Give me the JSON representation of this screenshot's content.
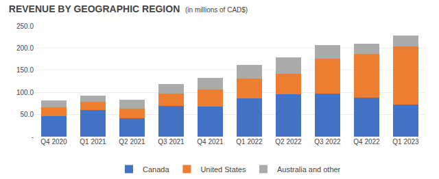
{
  "chart_data": {
    "type": "bar",
    "title": "REVENUE BY GEOGRAPHIC REGION",
    "subtitle": "(in millions of CAD$)",
    "categories": [
      "Q4 2020",
      "Q1 2021",
      "Q2 2021",
      "Q3 2021",
      "Q4 2021",
      "Q1 2022",
      "Q2 2022",
      "Q3 2022",
      "Q4 2022",
      "Q1 2023"
    ],
    "series": [
      {
        "name": "Canada",
        "color": "#4472C4",
        "values": [
          47,
          60,
          42,
          70,
          68,
          87,
          96,
          98,
          88,
          73
        ]
      },
      {
        "name": "United States",
        "color": "#ED7D31",
        "values": [
          19,
          18,
          22,
          27,
          38,
          44,
          46,
          78,
          98,
          130
        ]
      },
      {
        "name": "Australia and other",
        "color": "#ABABAB",
        "values": [
          16,
          15,
          20,
          22,
          27,
          31,
          37,
          31,
          24,
          25
        ]
      }
    ],
    "ylim": [
      0,
      250
    ],
    "yticks": [
      {
        "value": 0,
        "label": "-"
      },
      {
        "value": 50,
        "label": "50.0"
      },
      {
        "value": 100,
        "label": "100.0"
      },
      {
        "value": 150,
        "label": "150.0"
      },
      {
        "value": 200,
        "label": "200.0"
      },
      {
        "value": 250,
        "label": "250.0"
      }
    ],
    "stacked": true,
    "grid": true,
    "legend": "bottom"
  }
}
